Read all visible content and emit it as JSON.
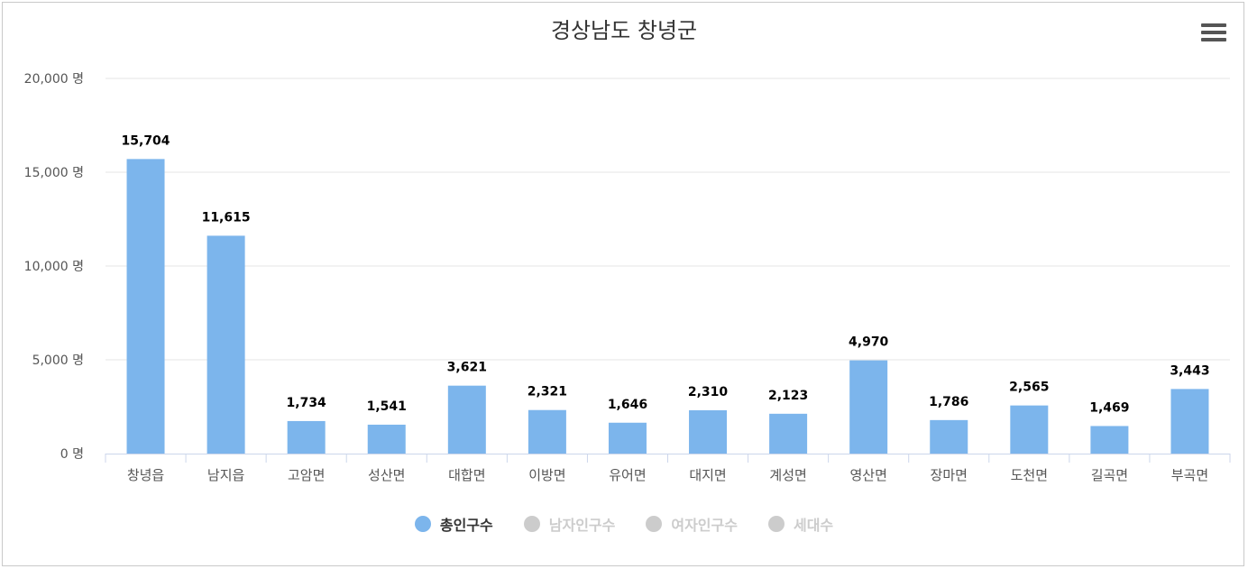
{
  "chart_data": {
    "type": "bar",
    "title": "경상남도 창녕군",
    "categories": [
      "창녕읍",
      "남지읍",
      "고암면",
      "성산면",
      "대합면",
      "이방면",
      "유어면",
      "대지면",
      "계성면",
      "영산면",
      "장마면",
      "도천면",
      "길곡면",
      "부곡면"
    ],
    "series": [
      {
        "name": "총인구수",
        "values": [
          15704,
          11615,
          1734,
          1541,
          3621,
          2321,
          1646,
          2310,
          2123,
          4970,
          1786,
          2565,
          1469,
          3443
        ],
        "color": "#7cb5ec",
        "visible": true
      }
    ],
    "value_labels": [
      "15,704",
      "11,615",
      "1,734",
      "1,541",
      "3,621",
      "2,321",
      "1,646",
      "2,310",
      "2,123",
      "4,970",
      "1,786",
      "2,565",
      "1,469",
      "3,443"
    ],
    "y_ticks": [
      0,
      5000,
      10000,
      15000,
      20000
    ],
    "y_tick_labels": [
      "0 명",
      "5,000 명",
      "10,000 명",
      "15,000 명",
      "20,000 명"
    ],
    "ylim": [
      0,
      20000
    ],
    "grid": true,
    "legend_position": "bottom-center"
  },
  "legend": [
    {
      "label": "총인구수",
      "color": "#7cb5ec",
      "active": true
    },
    {
      "label": "남자인구수",
      "color": "#cccccc",
      "active": false
    },
    {
      "label": "여자인구수",
      "color": "#cccccc",
      "active": false
    },
    {
      "label": "세대수",
      "color": "#cccccc",
      "active": false
    }
  ],
  "menu": {
    "icon": "hamburger-menu-icon"
  }
}
